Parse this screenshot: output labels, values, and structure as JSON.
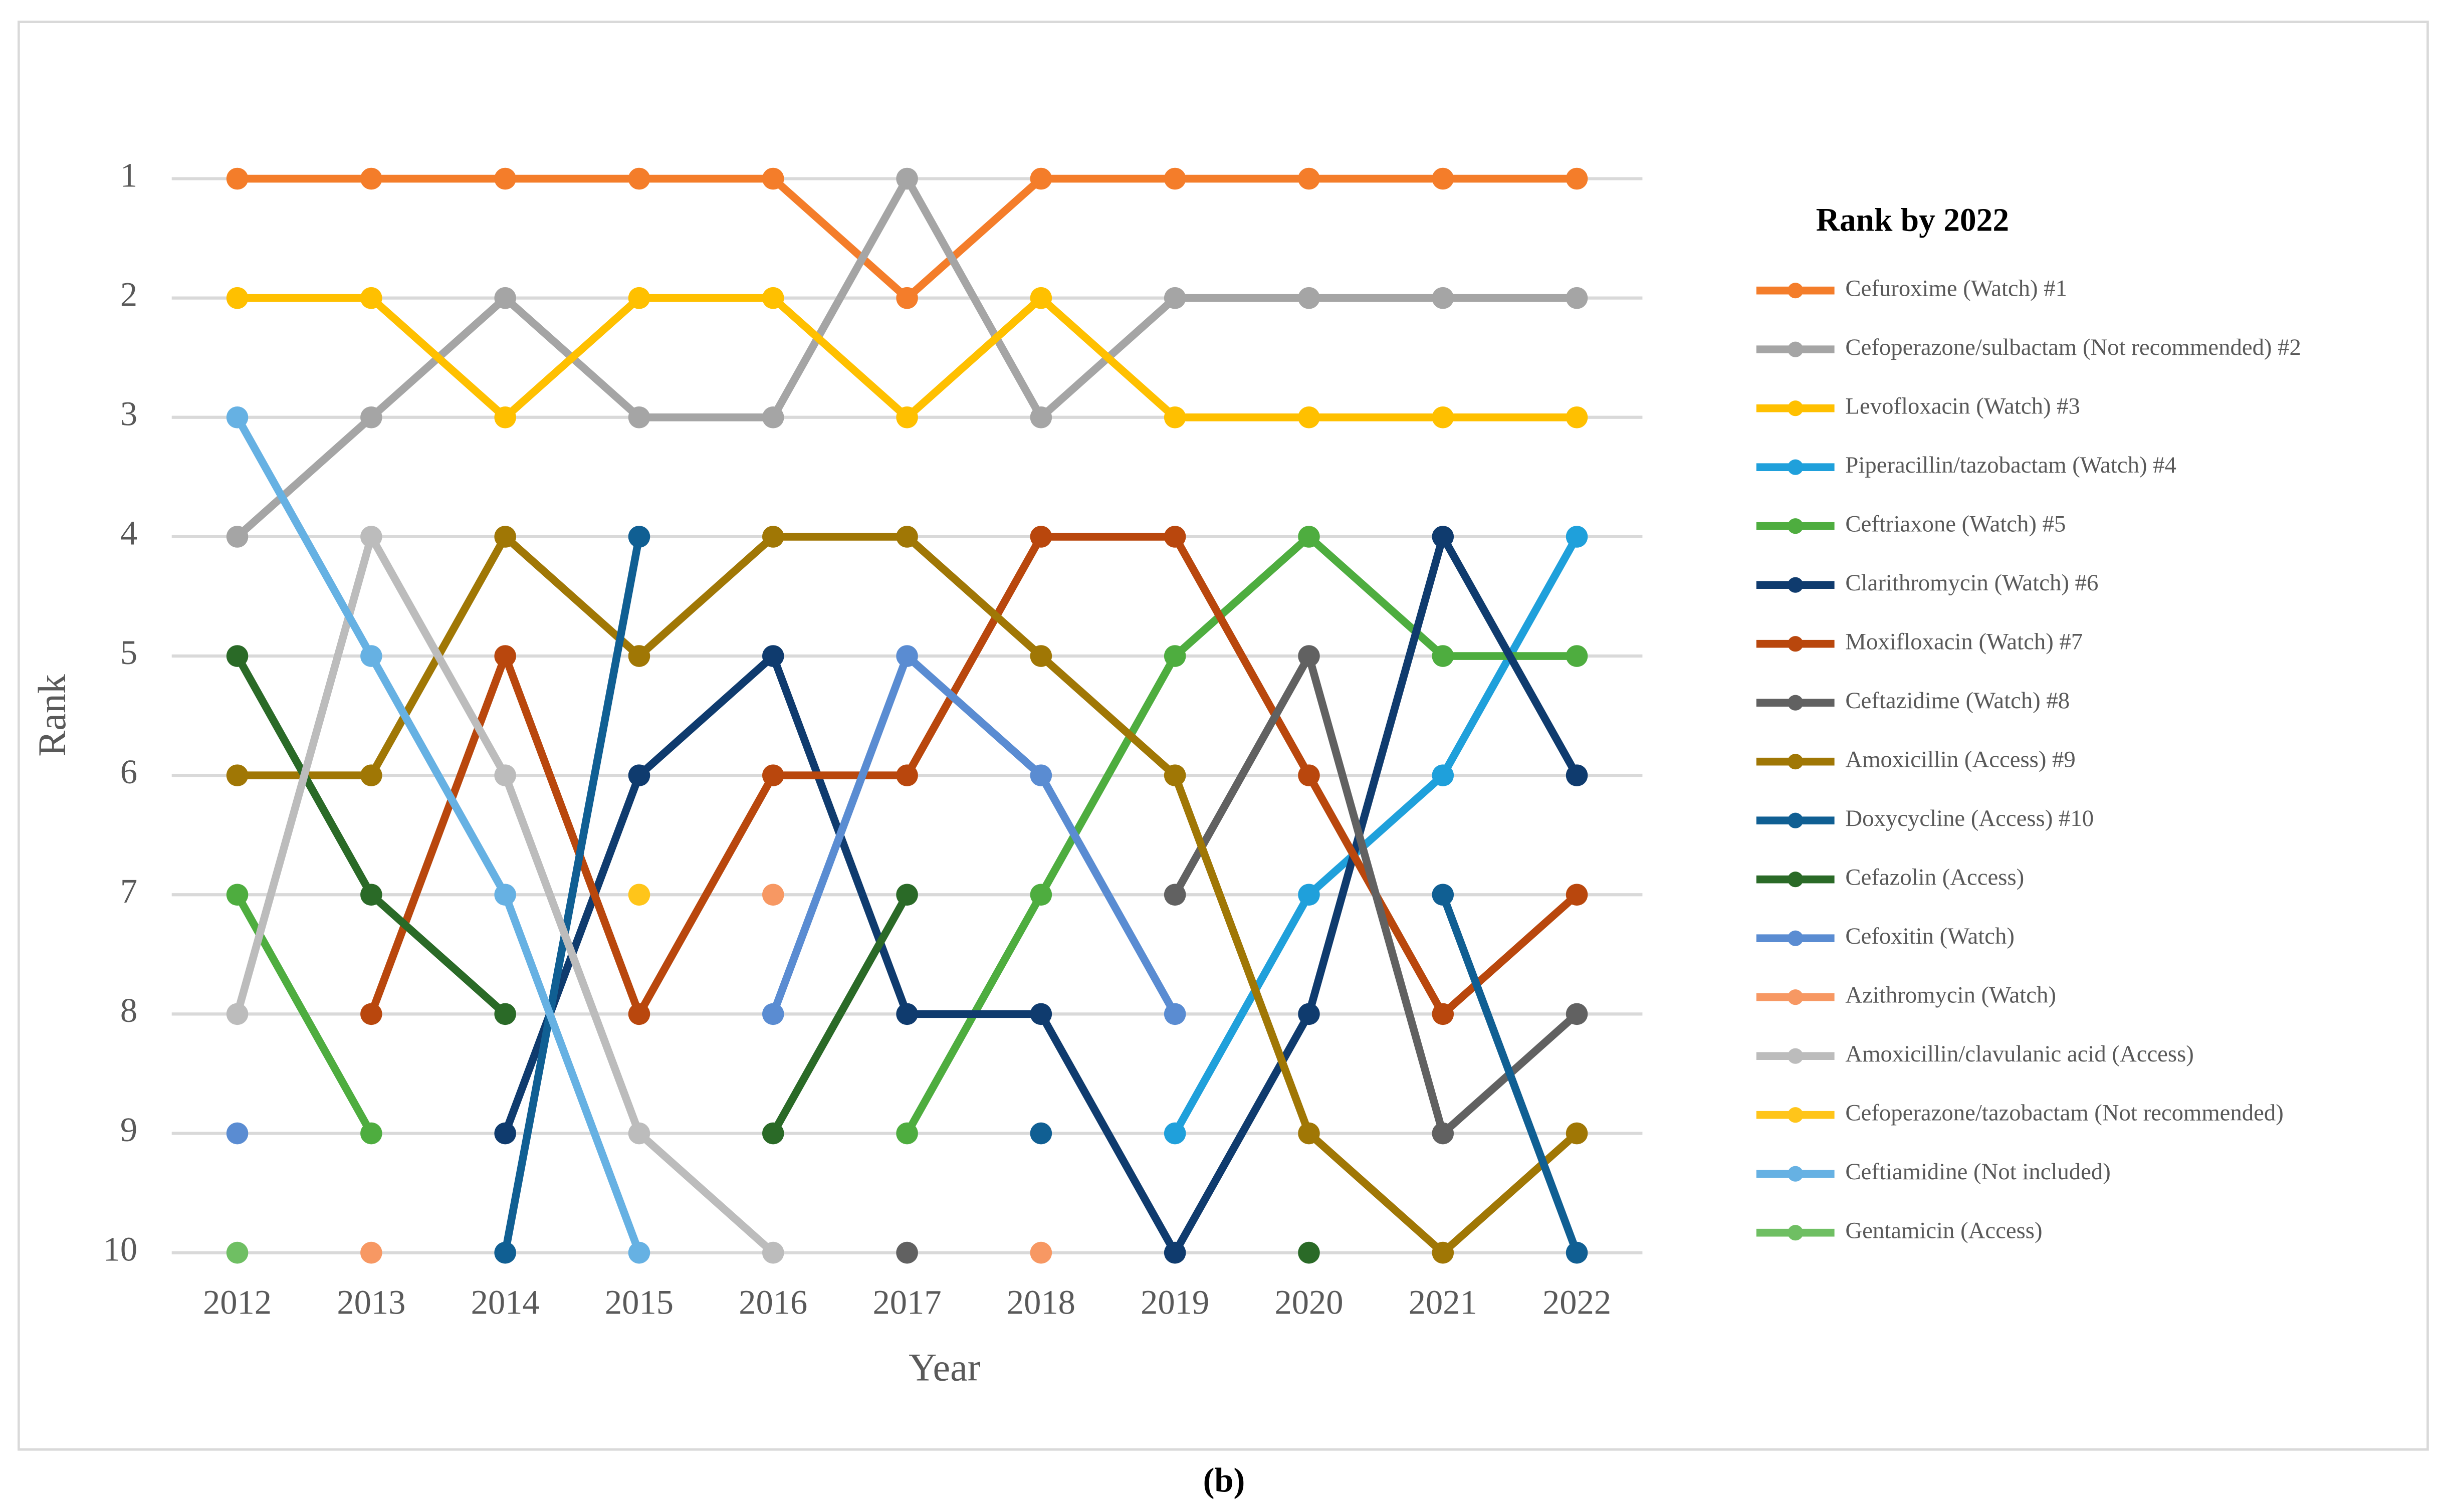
{
  "chart_data": {
    "type": "line",
    "caption": "(b)",
    "y_label": "Rank",
    "x_label": "Year",
    "legend_title": "Rank by 2022",
    "legend": "right",
    "grid": true,
    "y_inverted": true,
    "categories": [
      "2012",
      "2013",
      "2014",
      "2015",
      "2016",
      "2017",
      "2018",
      "2019",
      "2020",
      "2021",
      "2022"
    ],
    "ylim": [
      10,
      0
    ],
    "yticks": [
      1,
      2,
      3,
      4,
      5,
      6,
      7,
      8,
      9,
      10
    ],
    "series": [
      {
        "name": "Cefuroxime (Watch) #1",
        "color": "#f47d2a",
        "values": [
          1,
          1,
          1,
          1,
          1,
          2,
          1,
          1,
          1,
          1,
          1
        ]
      },
      {
        "name": "Cefoperazone/sulbactam (Not recommended) #2",
        "color": "#a5a5a5",
        "values": [
          4,
          3,
          2,
          3,
          3,
          1,
          3,
          2,
          2,
          2,
          2
        ]
      },
      {
        "name": "Levofloxacin (Watch) #3",
        "color": "#ffc000",
        "values": [
          2,
          2,
          3,
          2,
          2,
          3,
          2,
          3,
          3,
          3,
          3
        ]
      },
      {
        "name": "Piperacillin/tazobactam (Watch) #4",
        "color": "#1fa0db",
        "values": [
          null,
          null,
          null,
          null,
          null,
          null,
          null,
          9,
          7,
          6,
          4
        ]
      },
      {
        "name": "Ceftriaxone (Watch) #5",
        "color": "#4ead3f",
        "values": [
          7,
          9,
          null,
          null,
          null,
          9,
          7,
          5,
          4,
          5,
          5
        ]
      },
      {
        "name": "Clarithromycin (Watch) #6",
        "color": "#0f3b6e",
        "values": [
          null,
          null,
          9,
          6,
          5,
          8,
          8,
          10,
          8,
          4,
          6
        ]
      },
      {
        "name": "Moxifloxacin (Watch) #7",
        "color": "#b9470d",
        "values": [
          null,
          8,
          5,
          8,
          6,
          6,
          4,
          4,
          6,
          8,
          7
        ]
      },
      {
        "name": "Ceftazidime (Watch) #8",
        "color": "#616161",
        "values": [
          null,
          null,
          null,
          null,
          null,
          10,
          null,
          7,
          5,
          9,
          8
        ]
      },
      {
        "name": "Amoxicillin (Access) #9",
        "color": "#a07705",
        "values": [
          6,
          6,
          4,
          5,
          4,
          4,
          5,
          6,
          9,
          10,
          9
        ]
      },
      {
        "name": "Doxycycline (Access) #10",
        "color": "#105f93",
        "values": [
          null,
          null,
          10,
          4,
          null,
          null,
          9,
          null,
          null,
          7,
          10
        ]
      },
      {
        "name": "Cefazolin (Access)",
        "color": "#2a6a27",
        "values": [
          5,
          7,
          8,
          null,
          9,
          7,
          null,
          null,
          10,
          null,
          null
        ]
      },
      {
        "name": "Cefoxitin (Watch)",
        "color": "#5a8cd2",
        "values": [
          9,
          null,
          null,
          null,
          8,
          5,
          6,
          8,
          null,
          null,
          null
        ]
      },
      {
        "name": "Azithromycin (Watch)",
        "color": "#f79863",
        "values": [
          null,
          10,
          null,
          null,
          7,
          null,
          10,
          null,
          null,
          null,
          null
        ]
      },
      {
        "name": "Amoxicillin/clavulanic acid (Access)",
        "color": "#bcbcbc",
        "values": [
          8,
          4,
          6,
          9,
          10,
          null,
          null,
          null,
          null,
          null,
          null
        ]
      },
      {
        "name": "Cefoperazone/tazobactam (Not recommended)",
        "color": "#ffc51a",
        "values": [
          null,
          null,
          null,
          7,
          null,
          null,
          null,
          null,
          null,
          null,
          null
        ]
      },
      {
        "name": "Ceftiamidine (Not included)",
        "color": "#66b1e3",
        "values": [
          3,
          5,
          7,
          10,
          null,
          null,
          null,
          null,
          null,
          null,
          null
        ]
      },
      {
        "name": "Gentamicin (Access)",
        "color": "#6fbf63",
        "values": [
          10,
          null,
          null,
          null,
          null,
          null,
          null,
          null,
          null,
          null,
          null
        ]
      }
    ]
  }
}
